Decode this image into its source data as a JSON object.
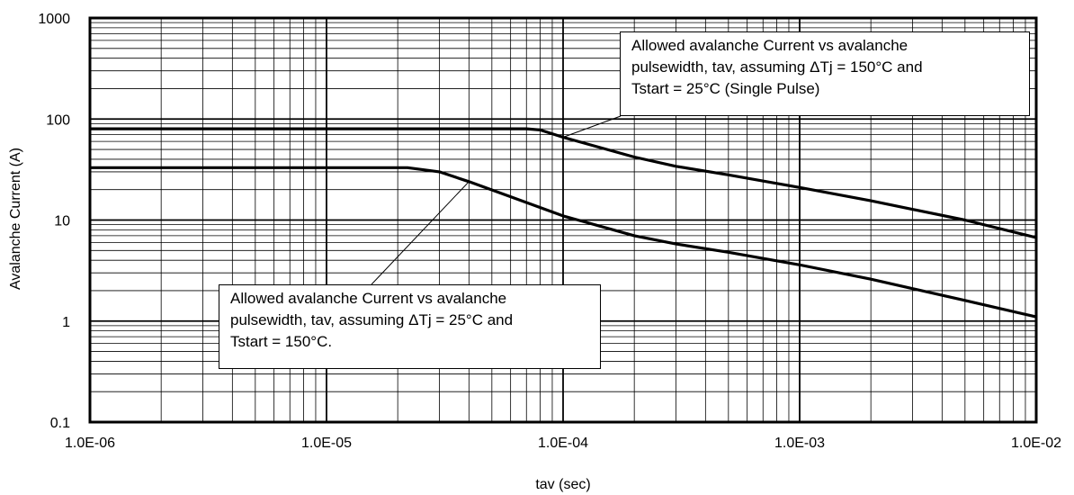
{
  "chart_data": {
    "type": "line",
    "xscale": "log",
    "yscale": "log",
    "xlim": [
      1e-06,
      0.01
    ],
    "ylim": [
      0.1,
      1000
    ],
    "xlabel": "tav (sec)",
    "ylabel": "Avalanche Current (A)",
    "x_tick_labels": [
      "1.0E-06",
      "1.0E-05",
      "1.0E-04",
      "1.0E-03",
      "1.0E-02"
    ],
    "y_tick_labels": [
      "0.1",
      "1",
      "10",
      "100",
      "1000"
    ],
    "grid": true,
    "series": [
      {
        "color": "#000000",
        "x": [
          1e-06,
          7e-05,
          8e-05,
          0.0001,
          0.0002,
          0.0003,
          0.0005,
          0.001,
          0.002,
          0.005,
          0.01
        ],
        "y": [
          80,
          80,
          78,
          66,
          42,
          34,
          28,
          21,
          15.5,
          10,
          6.7
        ]
      },
      {
        "color": "#000000",
        "x": [
          1e-06,
          2.2e-05,
          3e-05,
          4e-05,
          6e-05,
          0.0001,
          0.0002,
          0.0003,
          0.0005,
          0.001,
          0.002,
          0.005,
          0.01
        ],
        "y": [
          33,
          33,
          30,
          24,
          17,
          11,
          7,
          5.8,
          4.8,
          3.6,
          2.6,
          1.6,
          1.1
        ]
      }
    ]
  },
  "annotations": {
    "a150": {
      "line1": "Allowed avalanche Current vs avalanche",
      "line2": "pulsewidth, tav, assuming ΔTj = 150°C and",
      "line3": "Tstart = 25°C (Single Pulse)"
    },
    "a25": {
      "line1": "Allowed avalanche Current vs avalanche",
      "line2": "pulsewidth, tav, assuming ΔTj = 25°C and",
      "line3": "Tstart = 150°C."
    }
  }
}
